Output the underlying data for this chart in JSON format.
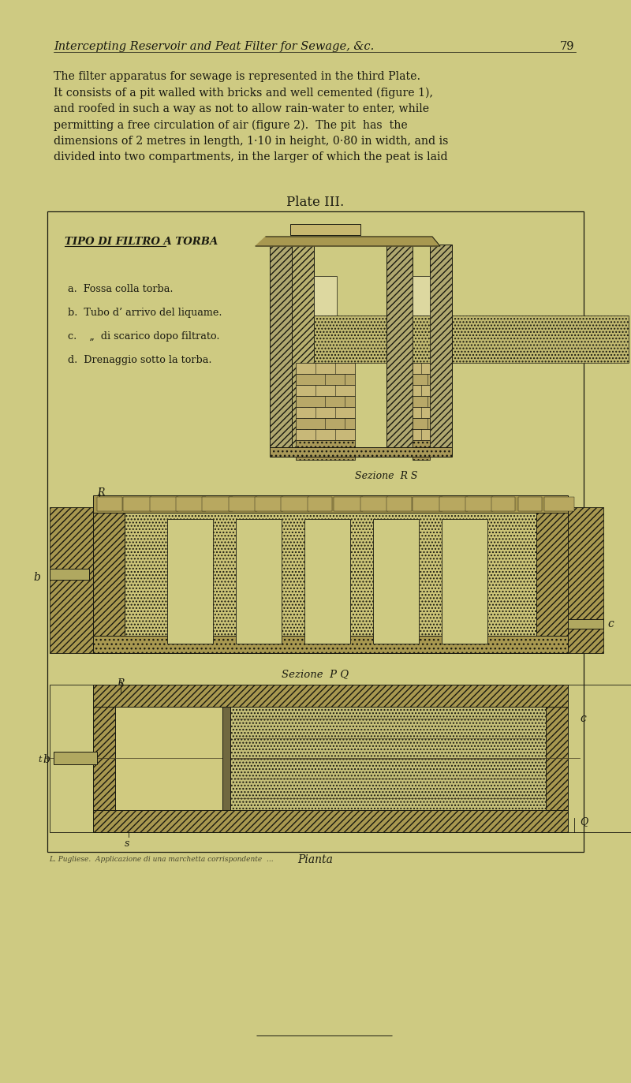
{
  "bg_color": "#ceca82",
  "text_color": "#1a1a10",
  "draw_color": "#1a1a10",
  "title_italic": "Intercepting Reservoir and Peat Filter for Sewage, &c.",
  "page_num": "79",
  "body_text": [
    "The filter apparatus for sewage is represented in the third Plate.",
    "It consists of a pit walled with bricks and well cemented (figure 1),",
    "and roofed in such a way as not to allow rain-water to enter, while",
    "permitting a free circulation of air (figure 2).  The pit  has  the",
    "dimensions of 2 metres in length, 1·10 in height, 0·80 in width, and is",
    "divided into two compartments, in the larger of which the peat is laid"
  ],
  "plate_title": "Plate III.",
  "fig1_heading": "TIPO DI FILTRO A TORBA",
  "fig1_labels": [
    "a.  Fossa colla torba.",
    "b.  Tubo d’ arrivo del liquame.",
    "c.    „  di scarico dopo filtrato.",
    "d.  Drenaggio sotto la torba."
  ],
  "caption1": "Sezione  R S",
  "caption2": "Sezione  P Q",
  "caption3": "Pianta",
  "footer": "L. Pugliese.  Applicazione di una marchetta corrispondente  ...",
  "hatch_wall": "////",
  "hatch_peat": "....",
  "hatch_gravel": "xxxx"
}
